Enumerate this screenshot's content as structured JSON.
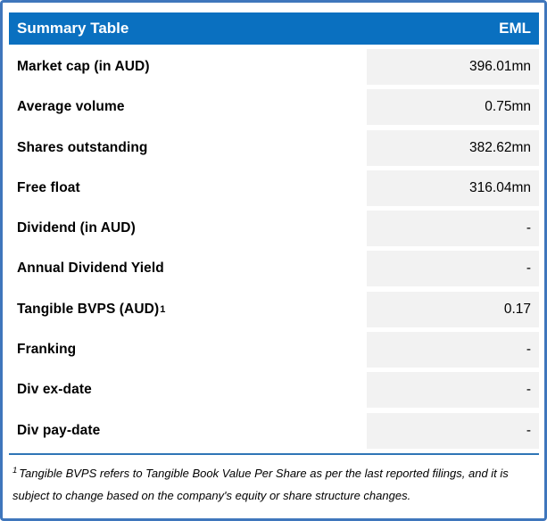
{
  "header": {
    "title": "Summary Table",
    "ticker": "EML"
  },
  "rows": [
    {
      "label": "Market cap (in AUD)",
      "value": "396.01mn"
    },
    {
      "label": "Average volume",
      "value": "0.75mn"
    },
    {
      "label": "Shares outstanding",
      "value": "382.62mn"
    },
    {
      "label": "Free float",
      "value": "316.04mn"
    },
    {
      "label": "Dividend (in AUD)",
      "value": "-"
    },
    {
      "label": "Annual Dividend Yield",
      "value": "-"
    },
    {
      "label": "Tangible BVPS (AUD)",
      "label_superscript": "1",
      "value": "0.17"
    },
    {
      "label": "Franking",
      "value": "-"
    },
    {
      "label": "Div ex-date",
      "value": "-"
    },
    {
      "label": "Div pay-date",
      "value": "-"
    }
  ],
  "footnote": {
    "superscript": "1",
    "text": "Tangible BVPS refers to Tangible Book Value Per Share as per the last reported filings, and it is subject to change based on the company's equity or share structure changes."
  },
  "colors": {
    "header_bg": "#0A70C0",
    "header_text": "#FFFFFF",
    "border": "#3F76BC",
    "rule": "#2E75B6",
    "cell_bg": "#F2F2F2",
    "text": "#000000"
  }
}
